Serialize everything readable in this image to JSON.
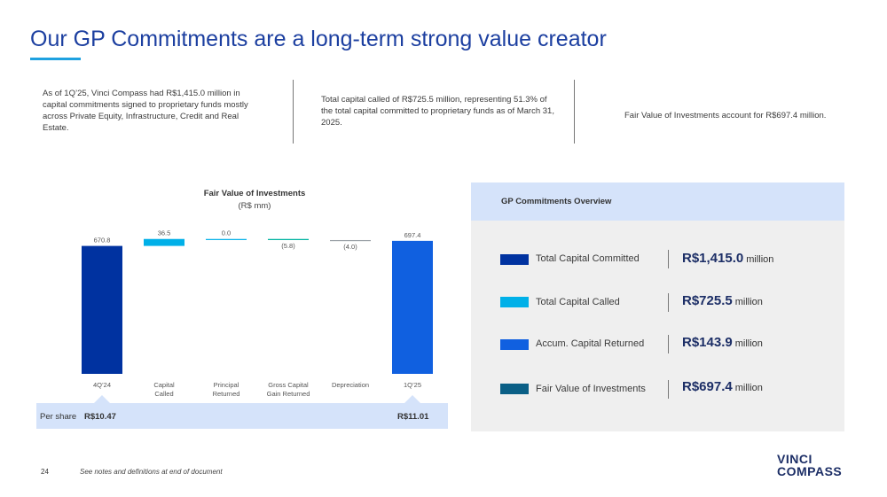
{
  "header": {
    "title": "Our GP Commitments are a long-term strong value creator"
  },
  "intro": {
    "col1": "As of 1Q’25, Vinci Compass had R$1,415.0 million in capital commitments signed to proprietary funds mostly across Private Equity, Infrastructure, Credit and Real Estate.",
    "col2": "Total capital called of R$725.5 million, representing 51.3% of the total capital committed to proprietary funds as of March 31, 2025.",
    "col3": "Fair Value of Investments account for R$697.4 million."
  },
  "chart_data": {
    "type": "waterfall",
    "title": "Fair Value of Investments",
    "subtitle": "(R$ mm)",
    "categories": [
      "4Q’24",
      "Capital Called",
      "Principal Returned",
      "Gross Capital Gain Returned",
      "Depreciation",
      "1Q’25"
    ],
    "category_lines": [
      [
        "4Q’24"
      ],
      [
        "Capital",
        "Called"
      ],
      [
        "Principal",
        "Returned"
      ],
      [
        "Gross Capital",
        "Gain Returned"
      ],
      [
        "Depreciation"
      ],
      [
        "1Q’25"
      ]
    ],
    "values": [
      670.8,
      36.5,
      0.0,
      -5.8,
      -4.0,
      697.4
    ],
    "labels": [
      "670.8",
      "36.5",
      "0.0",
      "(5.8)",
      "(4.0)",
      "697.4"
    ],
    "kinds": [
      "total",
      "delta",
      "delta",
      "delta",
      "delta",
      "total"
    ],
    "colors": [
      "#0032a0",
      "#00b0e8",
      "#00b0e8",
      "#00b3a1",
      "#9aa0a6",
      "#1060e0"
    ],
    "ylim": [
      0,
      720
    ],
    "per_share": {
      "label": "Per share",
      "start": "R$10.47",
      "end": "R$11.01"
    }
  },
  "overview": {
    "title": "GP Commitments Overview",
    "items": [
      {
        "label": "Total Capital Committed",
        "value": "R$1,415.0",
        "unit": "million",
        "color": "#0032a0"
      },
      {
        "label": "Total Capital Called",
        "value": "R$725.5",
        "unit": "million",
        "color": "#00b0e8"
      },
      {
        "label": "Accum. Capital Returned",
        "value": "R$143.9",
        "unit": "million",
        "color": "#1060e0"
      },
      {
        "label": "Fair Value of Investments",
        "value": "R$697.4",
        "unit": "million",
        "color": "#0a5f86"
      }
    ]
  },
  "footer": {
    "page_number": "24",
    "note": "See notes and definitions at end of document",
    "logo_line1": "VINCI",
    "logo_line2": "COMPASS"
  }
}
